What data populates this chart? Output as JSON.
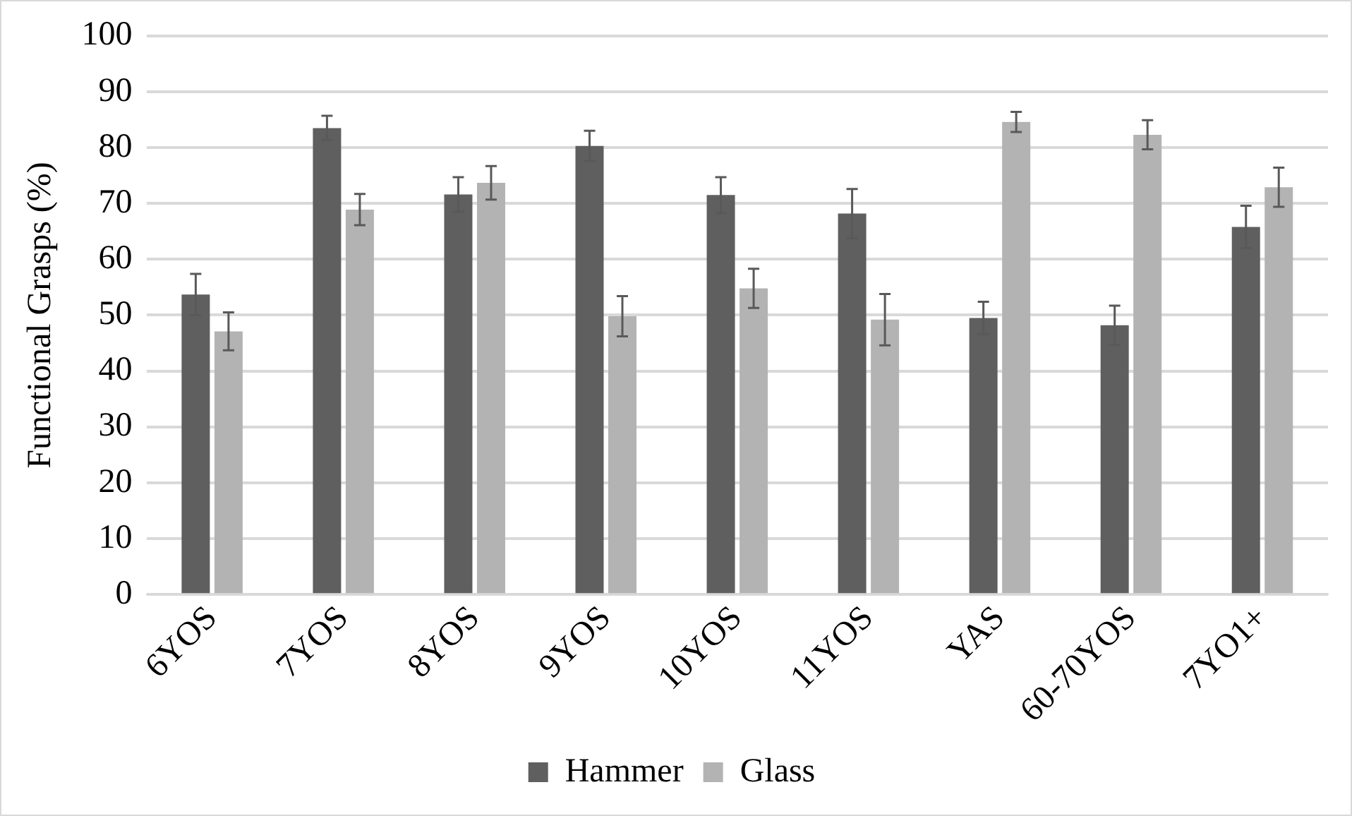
{
  "chart_data": {
    "type": "bar",
    "ylabel": "Functional Grasps (%)",
    "categories": [
      "6YOS",
      "7YOS",
      "8YOS",
      "9YOS",
      "10YOS",
      "11YOS",
      "YAS",
      "60-70YOS",
      "7YO1+"
    ],
    "series": [
      {
        "name": "Hammer",
        "color": "#5f5f5f",
        "values": [
          53.7,
          83.5,
          71.6,
          80.3,
          71.5,
          68.2,
          49.5,
          48.2,
          65.8
        ],
        "errors": [
          3.7,
          2.2,
          3.1,
          2.7,
          3.2,
          4.4,
          2.9,
          3.5,
          3.8
        ]
      },
      {
        "name": "Glass",
        "color": "#b3b3b3",
        "values": [
          47.1,
          68.9,
          73.7,
          49.8,
          54.8,
          49.2,
          84.6,
          82.3,
          72.9
        ],
        "errors": [
          3.4,
          2.8,
          3.0,
          3.6,
          3.5,
          4.6,
          1.8,
          2.6,
          3.5
        ]
      }
    ],
    "ylim": [
      0,
      100
    ],
    "yticks": [
      0,
      10,
      20,
      30,
      40,
      50,
      60,
      70,
      80,
      90,
      100
    ],
    "grid": "y",
    "legend": "bottom"
  }
}
